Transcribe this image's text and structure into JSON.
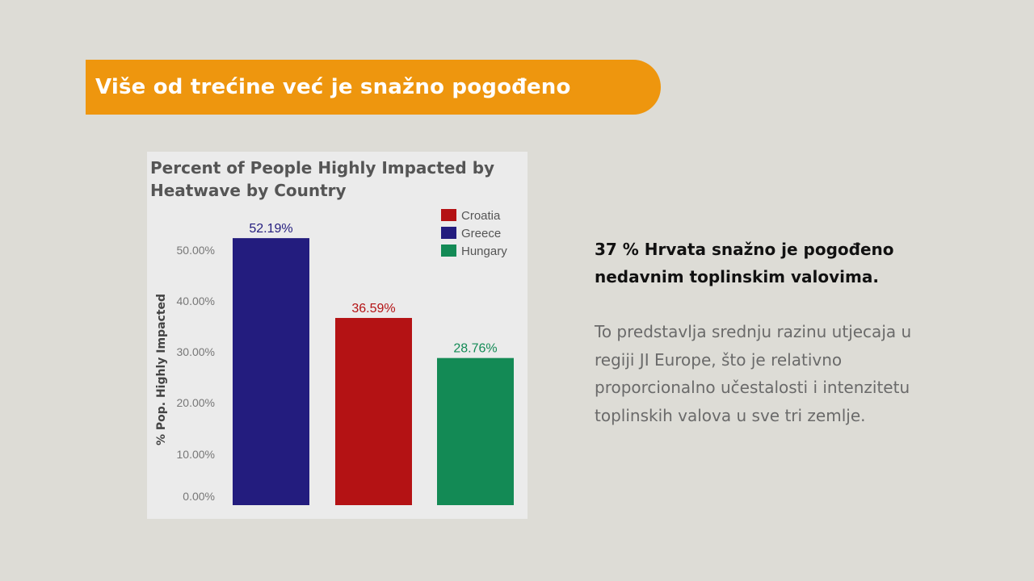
{
  "slide": {
    "title": "Više od trećine već je snažno pogođeno",
    "headline": "37 % Hrvata snažno je pogođeno nedavnim toplinskim valovima.",
    "body": "To predstavlja srednju razinu utjecaja u regiji JI Europe, što je relativno proporcionalno učestalosti i intenzitetu toplinskih valova u sve tri zemlje.",
    "banner_color": "#ee960e",
    "background_color": "#dddcd6"
  },
  "chart_data": {
    "type": "bar",
    "title_lines": [
      "Percent of People Highly Impacted by",
      "Heatwave by Country"
    ],
    "ylabel": "% Pop. Highly Impacted",
    "xlabel": "",
    "categories": [
      "Greece",
      "Croatia",
      "Hungary"
    ],
    "values": [
      52.19,
      36.59,
      28.76
    ],
    "data_labels": [
      "52.19%",
      "36.59%",
      "28.76%"
    ],
    "colors": [
      "#231c7e",
      "#b41214",
      "#138a55"
    ],
    "yticks": [
      0,
      10,
      20,
      30,
      40,
      50
    ],
    "ytick_labels": [
      "0.00%",
      "10.00%",
      "20.00%",
      "30.00%",
      "40.00%",
      "50.00%"
    ],
    "ylim": [
      0,
      55
    ],
    "grid": false,
    "legend_position": "top-right",
    "legend": [
      {
        "name": "Croatia",
        "color": "#b41214"
      },
      {
        "name": "Greece",
        "color": "#231c7e"
      },
      {
        "name": "Hungary",
        "color": "#138a55"
      }
    ]
  }
}
